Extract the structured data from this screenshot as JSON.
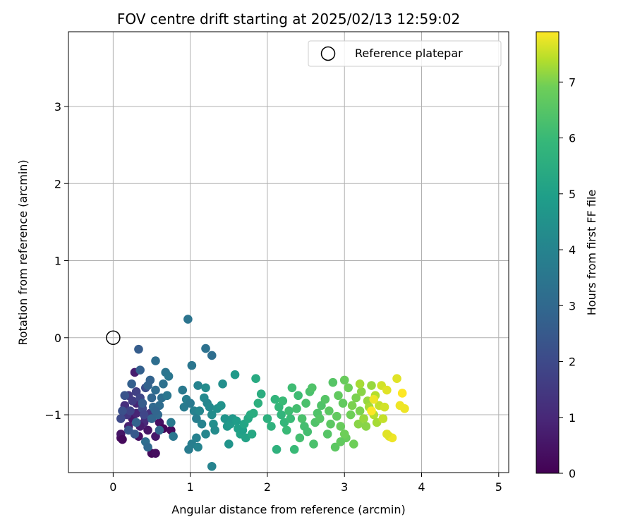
{
  "chart_data": {
    "type": "scatter",
    "title": "FOV centre drift starting at 2025/02/13 12:59:02",
    "xlabel": "Angular distance from reference (arcmin)",
    "ylabel": "Rotation from reference (arcmin)",
    "xlim": [
      -0.58,
      5.13
    ],
    "ylim": [
      -1.75,
      3.97
    ],
    "xticks": [
      0,
      1,
      2,
      3,
      4,
      5
    ],
    "xtick_labels": [
      "0",
      "1",
      "2",
      "3",
      "4",
      "5"
    ],
    "yticks": [
      -1,
      0,
      1,
      2,
      3
    ],
    "ytick_labels": [
      "−1",
      "0",
      "1",
      "2",
      "3"
    ],
    "grid": true,
    "legend": {
      "placement": "upper-right",
      "entries": [
        "Reference platepar"
      ]
    },
    "colormap": "viridis",
    "colorbar": {
      "label": "Hours from first FF file",
      "range": [
        0,
        7.9
      ],
      "ticks": [
        0,
        1,
        2,
        3,
        4,
        5,
        6,
        7
      ],
      "tick_labels": [
        "0",
        "1",
        "2",
        "3",
        "4",
        "5",
        "6",
        "7"
      ]
    },
    "reference_point": {
      "name": "Reference platepar",
      "x": 0,
      "y": 0
    },
    "series": [
      {
        "color_by": "Hours from first FF file",
        "points": [
          [
            0.1,
            -1.3,
            0.3
          ],
          [
            0.1,
            -1.25,
            0.5
          ],
          [
            0.12,
            -1.32,
            0.2
          ],
          [
            0.2,
            -1.15,
            0.8
          ],
          [
            0.25,
            -1.05,
            0.6
          ],
          [
            0.3,
            -0.98,
            0.9
          ],
          [
            0.28,
            -0.45,
            0.7
          ],
          [
            0.33,
            -1.28,
            0.4
          ],
          [
            0.4,
            -1.1,
            1.0
          ],
          [
            0.45,
            -1.2,
            0.5
          ],
          [
            0.5,
            -1.5,
            0.2
          ],
          [
            0.55,
            -1.5,
            0.3
          ],
          [
            0.55,
            -1.28,
            0.6
          ],
          [
            0.6,
            -1.1,
            0.4
          ],
          [
            0.65,
            -1.18,
            0.1
          ],
          [
            0.75,
            -1.2,
            0.2
          ],
          [
            0.3,
            -0.85,
            0.9
          ],
          [
            0.35,
            -1.15,
            0.7
          ],
          [
            0.42,
            -1.05,
            1.1
          ],
          [
            0.48,
            -0.98,
            1.3
          ],
          [
            0.15,
            -0.88,
            1.2
          ],
          [
            0.18,
            -1.0,
            1.4
          ],
          [
            0.2,
            -0.75,
            1.5
          ],
          [
            0.25,
            -0.82,
            1.6
          ],
          [
            0.22,
            -0.95,
            1.8
          ],
          [
            0.3,
            -0.7,
            1.7
          ],
          [
            0.35,
            -0.78,
            1.9
          ],
          [
            0.38,
            -0.92,
            2.0
          ],
          [
            0.4,
            -1.0,
            1.9
          ],
          [
            0.42,
            -0.65,
            2.1
          ],
          [
            0.12,
            -0.95,
            2.2
          ],
          [
            0.1,
            -1.05,
            2.0
          ],
          [
            0.15,
            -0.75,
            2.3
          ],
          [
            0.2,
            -1.2,
            2.4
          ],
          [
            0.28,
            -1.25,
            2.5
          ],
          [
            0.33,
            -0.15,
            2.6
          ],
          [
            0.35,
            -0.42,
            2.7
          ],
          [
            0.45,
            -0.62,
            2.8
          ],
          [
            0.5,
            -0.78,
            2.9
          ],
          [
            0.52,
            -0.9,
            3.0
          ],
          [
            0.55,
            -0.68,
            3.1
          ],
          [
            0.55,
            -0.3,
            3.2
          ],
          [
            0.58,
            -1.0,
            3.0
          ],
          [
            0.6,
            -0.88,
            3.1
          ],
          [
            0.63,
            -0.78,
            3.2
          ],
          [
            0.65,
            -0.6,
            3.3
          ],
          [
            0.68,
            -0.45,
            3.4
          ],
          [
            0.7,
            -0.75,
            3.5
          ],
          [
            0.72,
            -0.5,
            3.5
          ],
          [
            0.75,
            -1.1,
            3.6
          ],
          [
            0.78,
            -1.28,
            3.5
          ],
          [
            0.42,
            -1.35,
            3.2
          ],
          [
            0.45,
            -1.42,
            3.0
          ],
          [
            0.5,
            -1.05,
            2.9
          ],
          [
            0.3,
            -1.1,
            2.8
          ],
          [
            0.24,
            -0.6,
            2.7
          ],
          [
            0.38,
            -0.85,
            2.6
          ],
          [
            0.48,
            -0.55,
            2.8
          ],
          [
            0.55,
            -0.95,
            2.9
          ],
          [
            0.6,
            -1.2,
            3.0
          ],
          [
            0.97,
            0.24,
            3.4
          ],
          [
            1.02,
            -0.36,
            3.5
          ],
          [
            1.2,
            -0.14,
            3.3
          ],
          [
            1.28,
            -0.23,
            3.2
          ],
          [
            0.9,
            -0.68,
            3.6
          ],
          [
            0.92,
            -0.9,
            3.7
          ],
          [
            0.95,
            -0.8,
            3.8
          ],
          [
            1.0,
            -0.85,
            3.6
          ],
          [
            1.05,
            -0.95,
            3.9
          ],
          [
            1.08,
            -1.05,
            3.8
          ],
          [
            1.1,
            -0.62,
            4.0
          ],
          [
            1.12,
            -0.95,
            4.1
          ],
          [
            1.15,
            -1.12,
            4.0
          ],
          [
            1.18,
            -0.78,
            4.2
          ],
          [
            1.2,
            -0.65,
            4.3
          ],
          [
            1.22,
            -0.85,
            4.1
          ],
          [
            1.25,
            -0.9,
            4.2
          ],
          [
            1.28,
            -1.0,
            4.3
          ],
          [
            1.3,
            -1.12,
            4.4
          ],
          [
            1.32,
            -1.2,
            4.3
          ],
          [
            0.98,
            -1.45,
            3.7
          ],
          [
            1.02,
            -1.38,
            3.8
          ],
          [
            1.08,
            -1.3,
            3.9
          ],
          [
            1.1,
            -1.42,
            4.0
          ],
          [
            1.2,
            -1.25,
            4.1
          ],
          [
            1.28,
            -1.67,
            4.0
          ],
          [
            1.35,
            -0.92,
            4.4
          ],
          [
            1.4,
            -0.88,
            4.5
          ],
          [
            1.42,
            -0.6,
            4.4
          ],
          [
            1.45,
            -1.05,
            4.6
          ],
          [
            1.48,
            -1.15,
            4.7
          ],
          [
            1.5,
            -1.38,
            4.6
          ],
          [
            1.52,
            -1.12,
            4.8
          ],
          [
            1.55,
            -1.05,
            4.7
          ],
          [
            1.58,
            -0.48,
            4.8
          ],
          [
            1.6,
            -1.08,
            4.9
          ],
          [
            1.62,
            -1.18,
            5.0
          ],
          [
            1.65,
            -1.25,
            5.1
          ],
          [
            1.68,
            -1.2,
            5.0
          ],
          [
            1.7,
            -1.12,
            5.2
          ],
          [
            1.72,
            -1.3,
            5.1
          ],
          [
            1.75,
            -1.05,
            5.3
          ],
          [
            1.78,
            -1.0,
            5.4
          ],
          [
            1.8,
            -1.25,
            5.3
          ],
          [
            1.82,
            -0.98,
            5.5
          ],
          [
            1.85,
            -0.53,
            5.4
          ],
          [
            1.88,
            -0.85,
            5.6
          ],
          [
            1.92,
            -0.73,
            5.5
          ],
          [
            2.0,
            -1.05,
            5.6
          ],
          [
            2.05,
            -1.15,
            5.7
          ],
          [
            2.1,
            -0.8,
            5.8
          ],
          [
            2.12,
            -1.45,
            5.7
          ],
          [
            2.15,
            -0.9,
            5.9
          ],
          [
            2.18,
            -1.0,
            5.8
          ],
          [
            2.2,
            -0.82,
            6.0
          ],
          [
            2.22,
            -1.1,
            5.9
          ],
          [
            2.25,
            -1.2,
            6.0
          ],
          [
            2.28,
            -0.95,
            6.1
          ],
          [
            2.3,
            -1.05,
            6.0
          ],
          [
            2.32,
            -0.65,
            6.1
          ],
          [
            2.35,
            -1.45,
            6.0
          ],
          [
            2.38,
            -0.92,
            6.2
          ],
          [
            2.4,
            -0.75,
            6.1
          ],
          [
            2.42,
            -1.3,
            6.2
          ],
          [
            2.45,
            -1.05,
            6.3
          ],
          [
            2.48,
            -1.15,
            6.2
          ],
          [
            2.5,
            -0.85,
            6.3
          ],
          [
            2.52,
            -1.22,
            6.2
          ],
          [
            2.55,
            -0.7,
            6.3
          ],
          [
            2.58,
            -0.65,
            6.4
          ],
          [
            2.6,
            -1.38,
            6.3
          ],
          [
            2.62,
            -1.1,
            6.4
          ],
          [
            2.65,
            -0.98,
            6.4
          ],
          [
            2.68,
            -1.05,
            6.5
          ],
          [
            2.7,
            -0.88,
            6.4
          ],
          [
            2.75,
            -0.8,
            6.5
          ],
          [
            2.78,
            -1.25,
            6.5
          ],
          [
            2.8,
            -0.95,
            6.6
          ],
          [
            2.82,
            -1.12,
            6.6
          ],
          [
            2.85,
            -0.58,
            6.5
          ],
          [
            2.88,
            -1.42,
            6.6
          ],
          [
            2.9,
            -1.02,
            6.7
          ],
          [
            2.92,
            -0.75,
            6.7
          ],
          [
            2.95,
            -1.15,
            6.8
          ],
          [
            2.98,
            -0.85,
            6.7
          ],
          [
            3.0,
            -0.55,
            6.8
          ],
          [
            3.02,
            -1.3,
            6.8
          ],
          [
            3.05,
            -0.65,
            6.9
          ],
          [
            3.08,
            -1.0,
            6.9
          ],
          [
            3.1,
            -0.88,
            7.0
          ],
          [
            3.12,
            -1.38,
            6.9
          ],
          [
            3.15,
            -0.78,
            7.0
          ],
          [
            3.18,
            -1.12,
            7.1
          ],
          [
            3.2,
            -0.95,
            7.0
          ],
          [
            3.22,
            -0.7,
            7.1
          ],
          [
            3.25,
            -1.05,
            7.2
          ],
          [
            3.28,
            -1.15,
            7.1
          ],
          [
            3.3,
            -0.82,
            7.2
          ],
          [
            3.32,
            -0.9,
            7.3
          ],
          [
            3.35,
            -0.62,
            7.2
          ],
          [
            3.38,
            -1.0,
            7.4
          ],
          [
            3.4,
            -0.75,
            7.4
          ],
          [
            3.42,
            -1.1,
            7.3
          ],
          [
            3.45,
            -0.88,
            7.5
          ],
          [
            3.48,
            -0.62,
            7.6
          ],
          [
            3.5,
            -1.05,
            7.5
          ],
          [
            3.52,
            -0.9,
            7.6
          ],
          [
            3.55,
            -0.68,
            7.7
          ],
          [
            3.58,
            -1.28,
            7.7
          ],
          [
            3.62,
            -1.3,
            7.8
          ],
          [
            3.68,
            -0.53,
            7.7
          ],
          [
            3.72,
            -0.88,
            7.8
          ],
          [
            3.75,
            -0.72,
            7.9
          ],
          [
            3.78,
            -0.92,
            7.8
          ],
          [
            3.55,
            -1.25,
            7.7
          ],
          [
            3.35,
            -0.95,
            7.9
          ],
          [
            3.38,
            -0.8,
            7.8
          ],
          [
            3.2,
            -0.6,
            7.3
          ],
          [
            3.0,
            -1.25,
            6.9
          ],
          [
            2.95,
            -1.35,
            6.7
          ]
        ]
      }
    ]
  }
}
